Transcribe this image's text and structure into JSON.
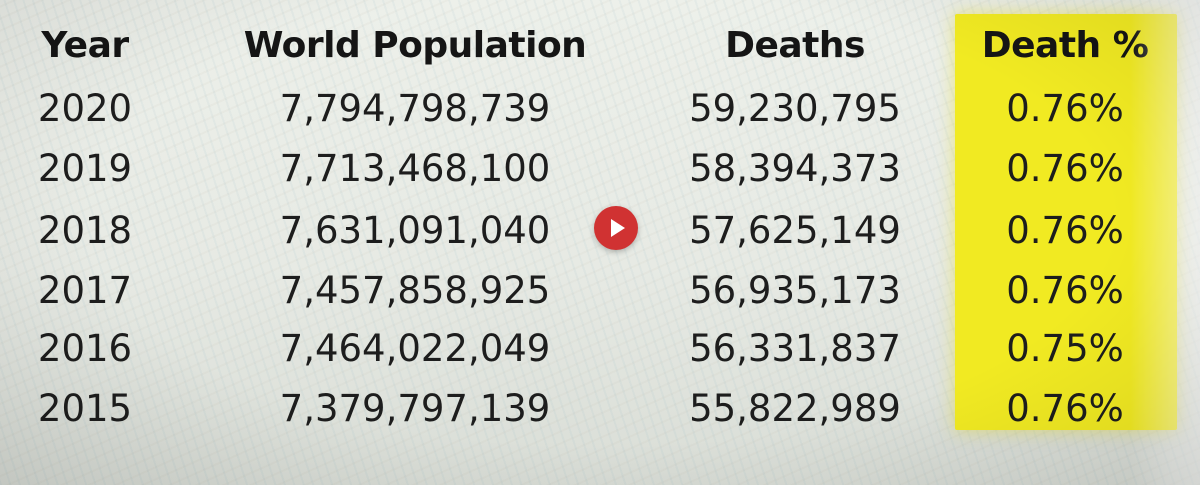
{
  "chart_data": {
    "type": "table",
    "columns": [
      "Year",
      "World Population",
      "Deaths",
      "Death %"
    ],
    "rows": [
      {
        "year": "2020",
        "population": "7,794,798,739",
        "deaths": "59,230,795",
        "death_pct": "0.76%"
      },
      {
        "year": "2019",
        "population": "7,713,468,100",
        "deaths": "58,394,373",
        "death_pct": "0.76%"
      },
      {
        "year": "2018",
        "population": "7,631,091,040",
        "deaths": "57,625,149",
        "death_pct": "0.76%"
      },
      {
        "year": "2017",
        "population": "7,457,858,925",
        "deaths": "56,935,173",
        "death_pct": "0.76%"
      },
      {
        "year": "2016",
        "population": "7,464,022,049",
        "deaths": "56,331,837",
        "death_pct": "0.75%"
      },
      {
        "year": "2015",
        "population": "7,379,797,139",
        "deaths": "55,822,989",
        "death_pct": "0.76%"
      }
    ],
    "highlight_column": "Death %",
    "highlight_color": "#f1ea22"
  },
  "player": {
    "icon": "play-icon",
    "color": "#d03232"
  }
}
